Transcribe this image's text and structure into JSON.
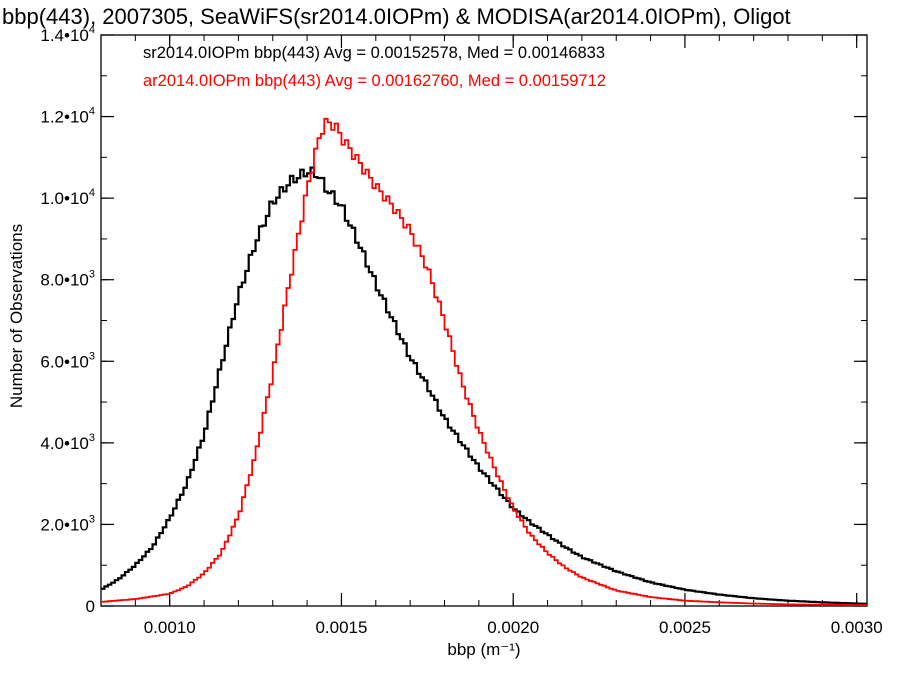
{
  "chart_data": {
    "type": "line",
    "title": "bbp(443), 2007305, SeaWiFS(sr2014.0IOPm) & MODISA(ar2014.0IOPm), Oligot",
    "xlabel": "bbp (m⁻¹)",
    "ylabel": "Number of Observations",
    "xlim": [
      0.0008,
      0.00303
    ],
    "ylim": [
      0,
      14000
    ],
    "x_ticks": [
      {
        "value": 0.001,
        "label": "0.0010"
      },
      {
        "value": 0.0015,
        "label": "0.0015"
      },
      {
        "value": 0.002,
        "label": "0.0020"
      },
      {
        "value": 0.0025,
        "label": "0.0025"
      },
      {
        "value": 0.003,
        "label": "0.0030"
      }
    ],
    "y_ticks": [
      {
        "value": 0,
        "mantissa": "0",
        "exponent": ""
      },
      {
        "value": 2000,
        "mantissa": "2.0•10",
        "exponent": "3"
      },
      {
        "value": 4000,
        "mantissa": "4.0•10",
        "exponent": "3"
      },
      {
        "value": 6000,
        "mantissa": "6.0•10",
        "exponent": "3"
      },
      {
        "value": 8000,
        "mantissa": "8.0•10",
        "exponent": "3"
      },
      {
        "value": 10000,
        "mantissa": "1.0•10",
        "exponent": "4"
      },
      {
        "value": 12000,
        "mantissa": "1.2•10",
        "exponent": "4"
      },
      {
        "value": 14000,
        "mantissa": "1.4•10",
        "exponent": "4"
      }
    ],
    "grid": false,
    "legend_position": "top-left",
    "series": [
      {
        "name": "sr2014.0IOPm bbp(443) Avg = 0.00152578, Med = 0.00146833",
        "color": "#000000",
        "x": [
          0.0008,
          0.00085,
          0.0009,
          0.00095,
          0.001,
          0.00105,
          0.0011,
          0.00115,
          0.0012,
          0.00125,
          0.0013,
          0.00135,
          0.0014,
          0.00143,
          0.00145,
          0.0015,
          0.00155,
          0.0016,
          0.00165,
          0.0017,
          0.00175,
          0.0018,
          0.00185,
          0.0019,
          0.00195,
          0.002,
          0.00205,
          0.0021,
          0.00215,
          0.0022,
          0.0023,
          0.0024,
          0.0025,
          0.0026,
          0.0027,
          0.0028,
          0.0029,
          0.003,
          0.00303
        ],
        "y": [
          400,
          650,
          1000,
          1450,
          2150,
          3000,
          4200,
          5900,
          7600,
          8900,
          9900,
          10400,
          10650,
          10600,
          10300,
          9800,
          8900,
          7900,
          7000,
          6100,
          5400,
          4600,
          4000,
          3400,
          2900,
          2400,
          2050,
          1750,
          1450,
          1200,
          850,
          580,
          400,
          280,
          190,
          130,
          90,
          60,
          50
        ]
      },
      {
        "name": "ar2014.0IOPm bbp(443) Avg = 0.00162760, Med = 0.00159712",
        "color": "#ff0000",
        "x": [
          0.0008,
          0.0009,
          0.001,
          0.00105,
          0.0011,
          0.00115,
          0.0012,
          0.00125,
          0.0013,
          0.00135,
          0.0014,
          0.00143,
          0.00145,
          0.00148,
          0.0015,
          0.00155,
          0.0016,
          0.00165,
          0.0017,
          0.00175,
          0.0018,
          0.00185,
          0.0019,
          0.00195,
          0.002,
          0.00205,
          0.0021,
          0.00215,
          0.0022,
          0.0023,
          0.0024,
          0.0025,
          0.0026,
          0.0027,
          0.0028,
          0.0029,
          0.003,
          0.00303
        ],
        "y": [
          100,
          170,
          300,
          480,
          800,
          1300,
          2200,
          3700,
          5700,
          8000,
          10200,
          11300,
          11850,
          11800,
          11500,
          10900,
          10300,
          9800,
          9200,
          8300,
          7000,
          5500,
          4300,
          3300,
          2400,
          1750,
          1300,
          950,
          700,
          380,
          220,
          130,
          90,
          60,
          40,
          30,
          25,
          20
        ]
      }
    ]
  }
}
